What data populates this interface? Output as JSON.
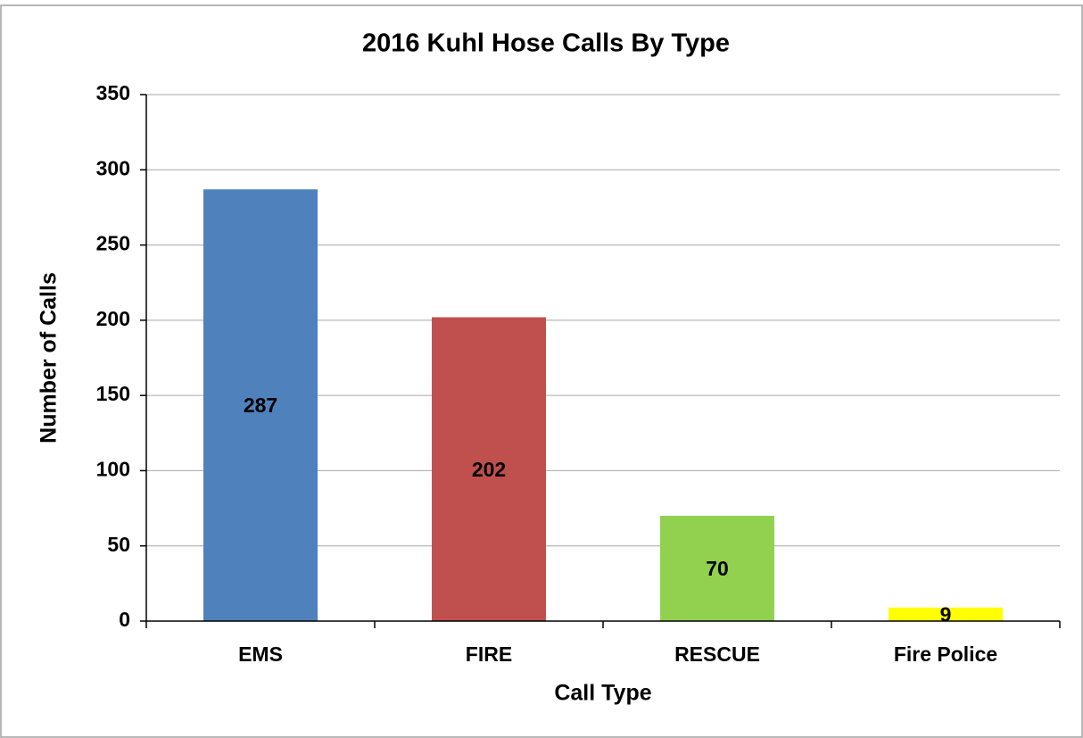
{
  "chart_data": {
    "type": "bar",
    "title": "2016 Kuhl Hose Calls By Type",
    "x_label": "Call Type",
    "y_label": "Number of Calls",
    "categories": [
      "EMS",
      "FIRE",
      "RESCUE",
      "Fire Police"
    ],
    "values": [
      287,
      202,
      70,
      9
    ],
    "colors": [
      "#4f81bd",
      "#c0504d",
      "#92d050",
      "#ffff00"
    ],
    "ylim": [
      0,
      350
    ],
    "yticks": [
      0,
      50,
      100,
      150,
      200,
      250,
      300,
      350
    ],
    "grid": true,
    "data_labels": true
  }
}
